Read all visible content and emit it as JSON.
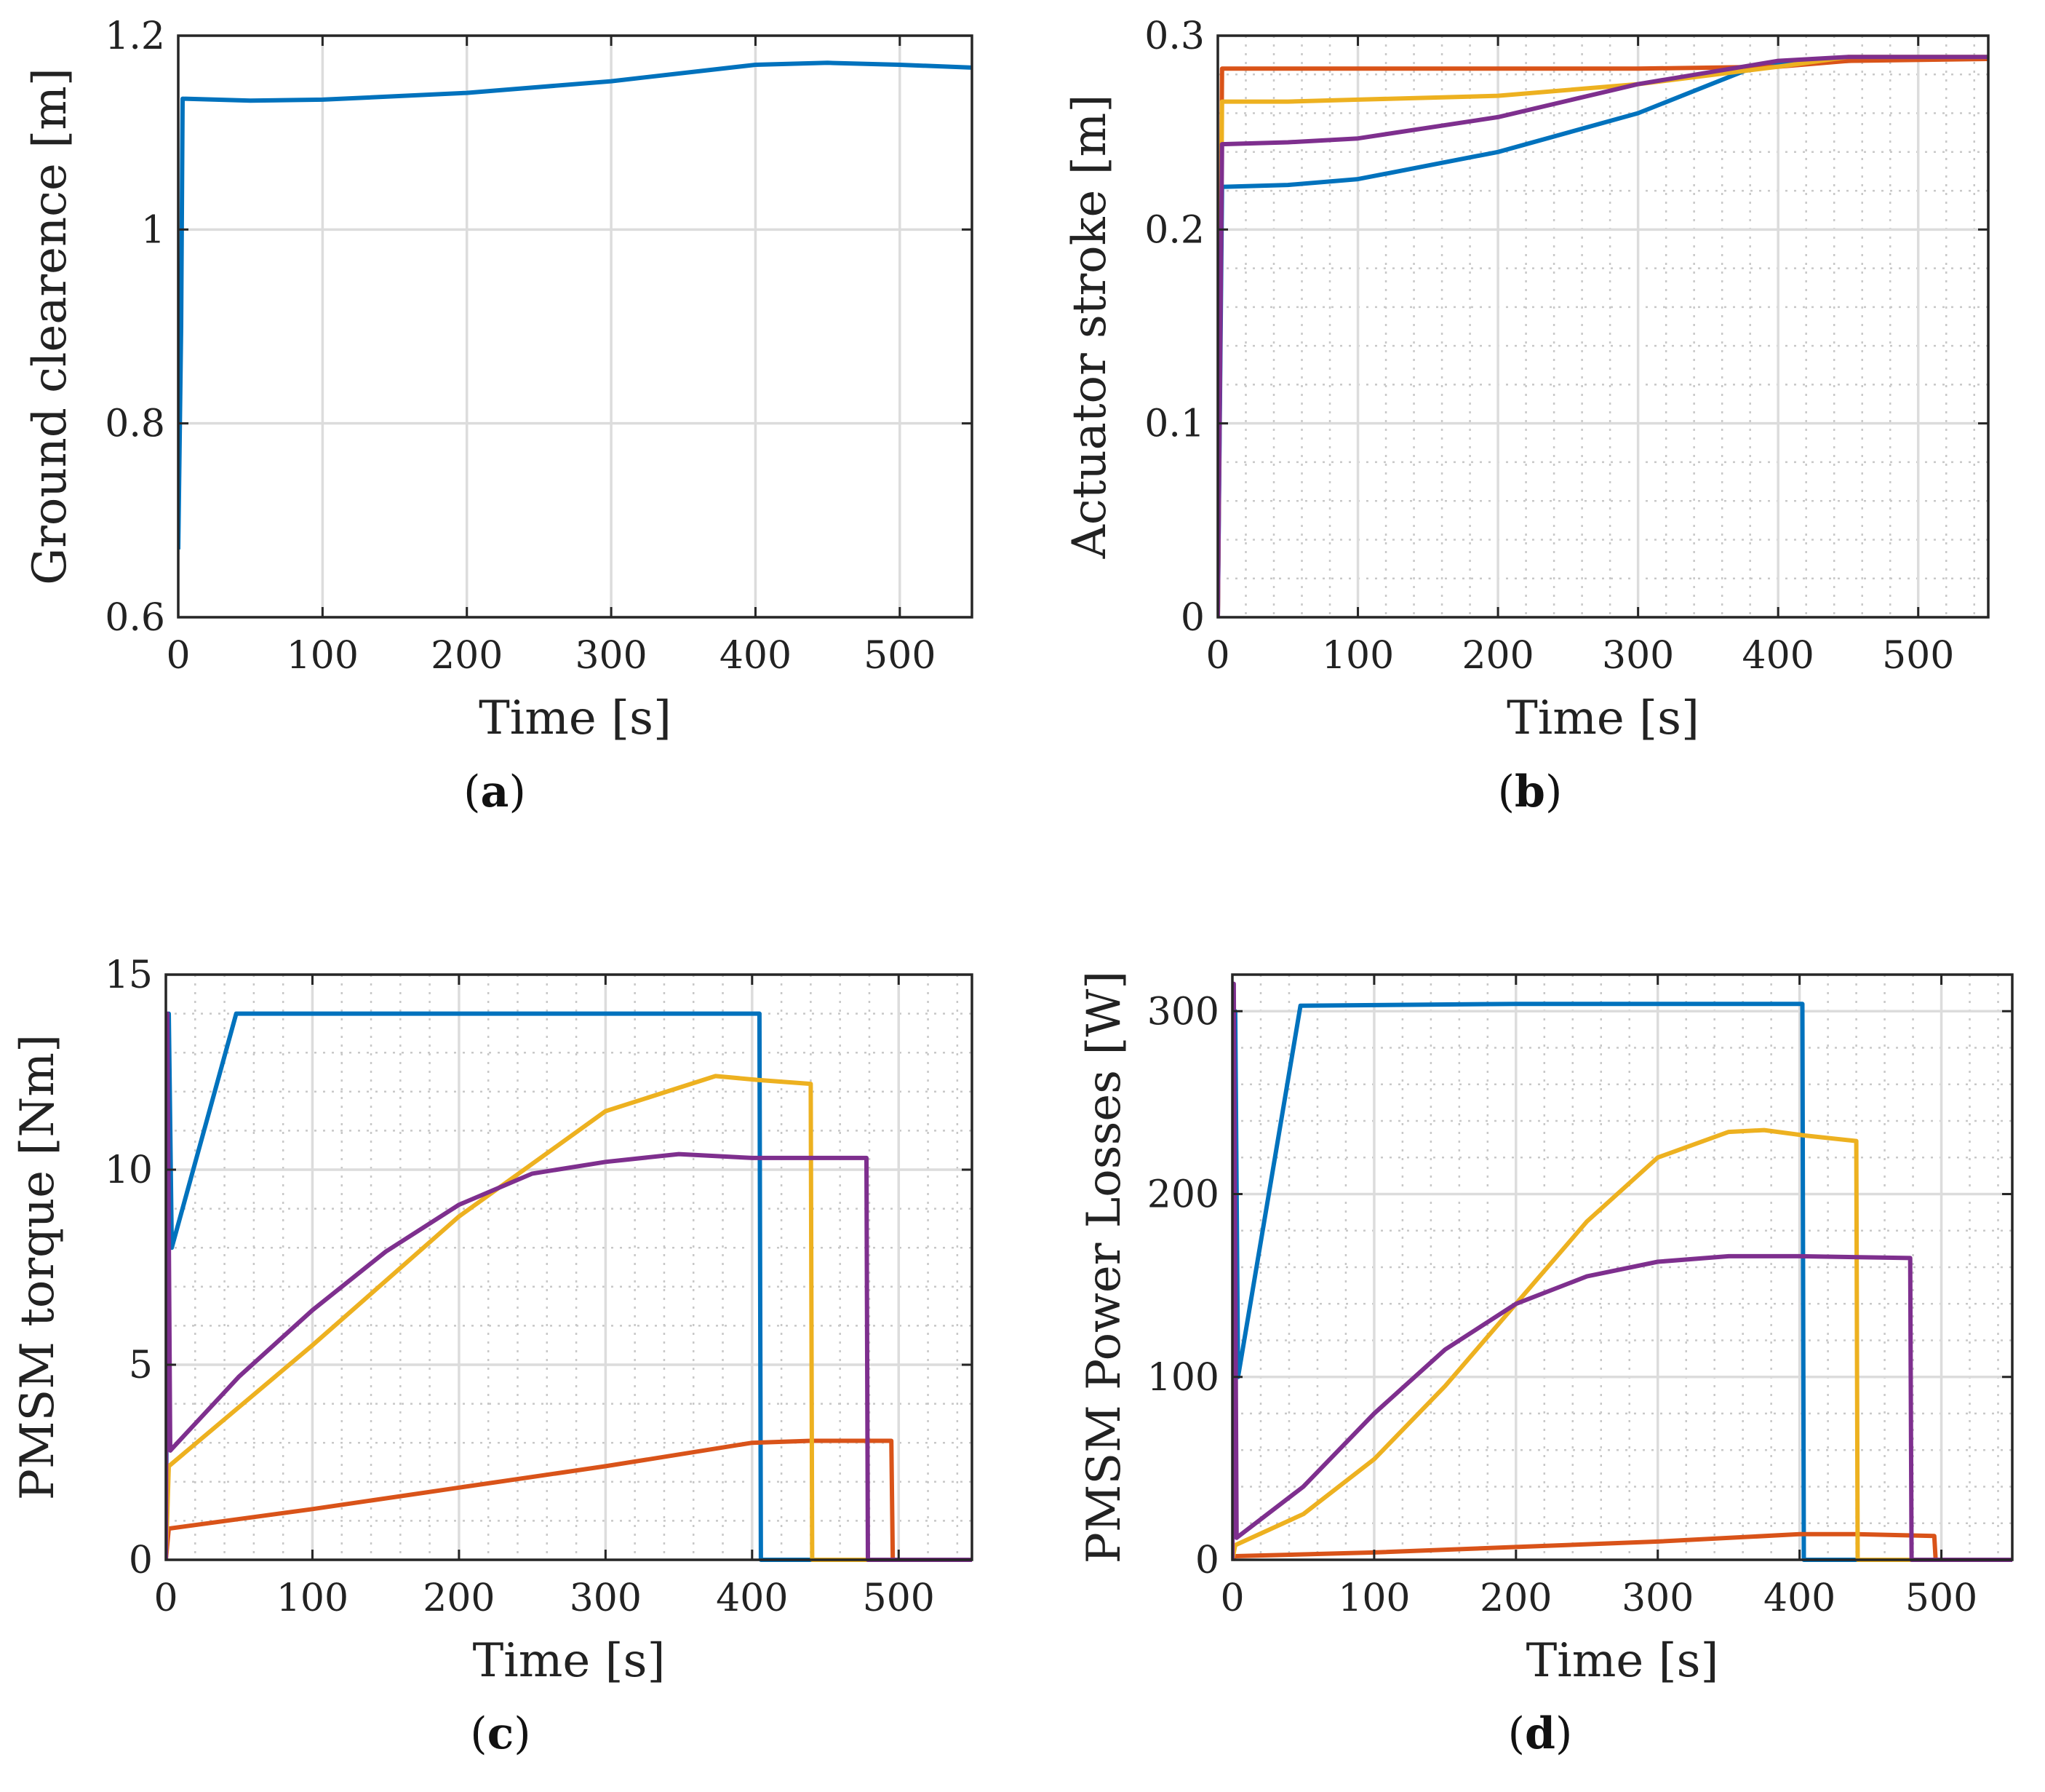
{
  "colors": {
    "blue": "#0072BD",
    "red": "#D95319",
    "yellow": "#EDB120",
    "purple": "#7E2F8E",
    "grid_major": "#dcdcdc",
    "grid_minor": "#c8c8c8",
    "axis": "#262626"
  },
  "chart_data": [
    {
      "id": "a",
      "type": "line",
      "caption": "a",
      "xlabel": "Time [s]",
      "ylabel": "Ground clearence [m]",
      "xlim": [
        0,
        550
      ],
      "ylim": [
        0.6,
        1.2
      ],
      "xticks": [
        0,
        100,
        200,
        300,
        400,
        500
      ],
      "yticks": [
        0.6,
        0.8,
        1,
        1.2
      ],
      "ytick_labels": [
        "0.6",
        "0.8",
        "1",
        "1.2"
      ],
      "grid": "major",
      "series": [
        {
          "color": "blue",
          "points": [
            [
              0,
              0.67
            ],
            [
              2,
              0.9
            ],
            [
              3,
              1.135
            ],
            [
              50,
              1.133
            ],
            [
              100,
              1.134
            ],
            [
              200,
              1.141
            ],
            [
              300,
              1.153
            ],
            [
              400,
              1.17
            ],
            [
              450,
              1.172
            ],
            [
              500,
              1.17
            ],
            [
              550,
              1.167
            ]
          ]
        }
      ]
    },
    {
      "id": "b",
      "type": "line",
      "caption": "b",
      "xlabel": "Time [s]",
      "ylabel": "Actuator stroke [m]",
      "xlim": [
        0,
        550
      ],
      "ylim": [
        0,
        0.3
      ],
      "xticks": [
        0,
        100,
        200,
        300,
        400,
        500
      ],
      "yticks": [
        0,
        0.1,
        0.2,
        0.3
      ],
      "ytick_labels": [
        "0",
        "0.1",
        "0.2",
        "0.3"
      ],
      "grid": "major+minor",
      "series": [
        {
          "color": "blue",
          "points": [
            [
              0,
              0
            ],
            [
              3,
              0.222
            ],
            [
              50,
              0.223
            ],
            [
              100,
              0.226
            ],
            [
              200,
              0.24
            ],
            [
              300,
              0.26
            ],
            [
              380,
              0.283
            ],
            [
              400,
              0.286
            ],
            [
              500,
              0.288
            ],
            [
              550,
              0.288
            ]
          ]
        },
        {
          "color": "red",
          "points": [
            [
              0,
              0
            ],
            [
              3,
              0.283
            ],
            [
              100,
              0.283
            ],
            [
              200,
              0.283
            ],
            [
              300,
              0.283
            ],
            [
              400,
              0.284
            ],
            [
              450,
              0.287
            ],
            [
              550,
              0.288
            ]
          ]
        },
        {
          "color": "yellow",
          "points": [
            [
              0,
              0
            ],
            [
              3,
              0.266
            ],
            [
              50,
              0.266
            ],
            [
              100,
              0.267
            ],
            [
              200,
              0.269
            ],
            [
              300,
              0.275
            ],
            [
              400,
              0.284
            ],
            [
              450,
              0.289
            ],
            [
              500,
              0.289
            ],
            [
              550,
              0.289
            ]
          ]
        },
        {
          "color": "purple",
          "points": [
            [
              0,
              0
            ],
            [
              3,
              0.244
            ],
            [
              50,
              0.245
            ],
            [
              100,
              0.247
            ],
            [
              200,
              0.258
            ],
            [
              300,
              0.275
            ],
            [
              400,
              0.287
            ],
            [
              450,
              0.289
            ],
            [
              550,
              0.289
            ]
          ]
        }
      ]
    },
    {
      "id": "c",
      "type": "line",
      "caption": "c",
      "xlabel": "Time [s]",
      "ylabel": "PMSM torque [Nm]",
      "xlim": [
        0,
        550
      ],
      "ylim": [
        0,
        15
      ],
      "xticks": [
        0,
        100,
        200,
        300,
        400,
        500
      ],
      "yticks": [
        0,
        5,
        10,
        15
      ],
      "ytick_labels": [
        "0",
        "5",
        "10",
        "15"
      ],
      "grid": "major+minor",
      "series": [
        {
          "color": "blue",
          "points": [
            [
              0,
              0
            ],
            [
              2,
              14
            ],
            [
              4,
              8
            ],
            [
              48,
              14
            ],
            [
              405,
              14
            ],
            [
              406,
              0
            ],
            [
              550,
              0
            ]
          ]
        },
        {
          "color": "red",
          "points": [
            [
              0,
              0
            ],
            [
              2,
              0.8
            ],
            [
              100,
              1.3
            ],
            [
              200,
              1.85
            ],
            [
              300,
              2.4
            ],
            [
              400,
              3.0
            ],
            [
              440,
              3.05
            ],
            [
              495,
              3.05
            ],
            [
              496,
              0
            ],
            [
              550,
              0
            ]
          ]
        },
        {
          "color": "yellow",
          "points": [
            [
              0,
              0
            ],
            [
              2,
              2.4
            ],
            [
              100,
              5.5
            ],
            [
              200,
              8.8
            ],
            [
              300,
              11.5
            ],
            [
              375,
              12.4
            ],
            [
              404,
              12.3
            ],
            [
              440,
              12.2
            ],
            [
              441,
              0
            ],
            [
              550,
              0
            ]
          ]
        },
        {
          "color": "purple",
          "points": [
            [
              0,
              0
            ],
            [
              1,
              14
            ],
            [
              3,
              2.8
            ],
            [
              50,
              4.7
            ],
            [
              100,
              6.4
            ],
            [
              150,
              7.9
            ],
            [
              200,
              9.1
            ],
            [
              250,
              9.9
            ],
            [
              300,
              10.2
            ],
            [
              350,
              10.4
            ],
            [
              400,
              10.3
            ],
            [
              478,
              10.3
            ],
            [
              479,
              0
            ],
            [
              550,
              0
            ]
          ]
        }
      ]
    },
    {
      "id": "d",
      "type": "line",
      "caption": "d",
      "xlabel": "Time [s]",
      "ylabel": "PMSM Power Losses [W]",
      "xlim": [
        0,
        550
      ],
      "ylim": [
        0,
        320
      ],
      "xticks": [
        0,
        100,
        200,
        300,
        400,
        500
      ],
      "yticks": [
        0,
        100,
        200,
        300
      ],
      "ytick_labels": [
        "0",
        "100",
        "200",
        "300"
      ],
      "grid": "major+minor",
      "series": [
        {
          "color": "blue",
          "points": [
            [
              0,
              0
            ],
            [
              2,
              300
            ],
            [
              4,
              100
            ],
            [
              48,
              303
            ],
            [
              200,
              304
            ],
            [
              402,
              304
            ],
            [
              403,
              0
            ],
            [
              550,
              0
            ]
          ]
        },
        {
          "color": "red",
          "points": [
            [
              0,
              0
            ],
            [
              2,
              2
            ],
            [
              100,
              4
            ],
            [
              200,
              7
            ],
            [
              300,
              10
            ],
            [
              400,
              14
            ],
            [
              440,
              14
            ],
            [
              495,
              13
            ],
            [
              496,
              0
            ],
            [
              550,
              0
            ]
          ]
        },
        {
          "color": "yellow",
          "points": [
            [
              0,
              0
            ],
            [
              2,
              8
            ],
            [
              50,
              25
            ],
            [
              100,
              55
            ],
            [
              150,
              95
            ],
            [
              200,
              140
            ],
            [
              250,
              185
            ],
            [
              300,
              220
            ],
            [
              350,
              234
            ],
            [
              375,
              235
            ],
            [
              404,
              232
            ],
            [
              440,
              229
            ],
            [
              441,
              0
            ],
            [
              550,
              0
            ]
          ]
        },
        {
          "color": "purple",
          "points": [
            [
              0,
              0
            ],
            [
              1,
              315
            ],
            [
              3,
              12
            ],
            [
              50,
              40
            ],
            [
              100,
              80
            ],
            [
              150,
              115
            ],
            [
              200,
              140
            ],
            [
              250,
              155
            ],
            [
              300,
              163
            ],
            [
              350,
              166
            ],
            [
              400,
              166
            ],
            [
              478,
              165
            ],
            [
              479,
              0
            ],
            [
              550,
              0
            ]
          ]
        }
      ]
    }
  ]
}
